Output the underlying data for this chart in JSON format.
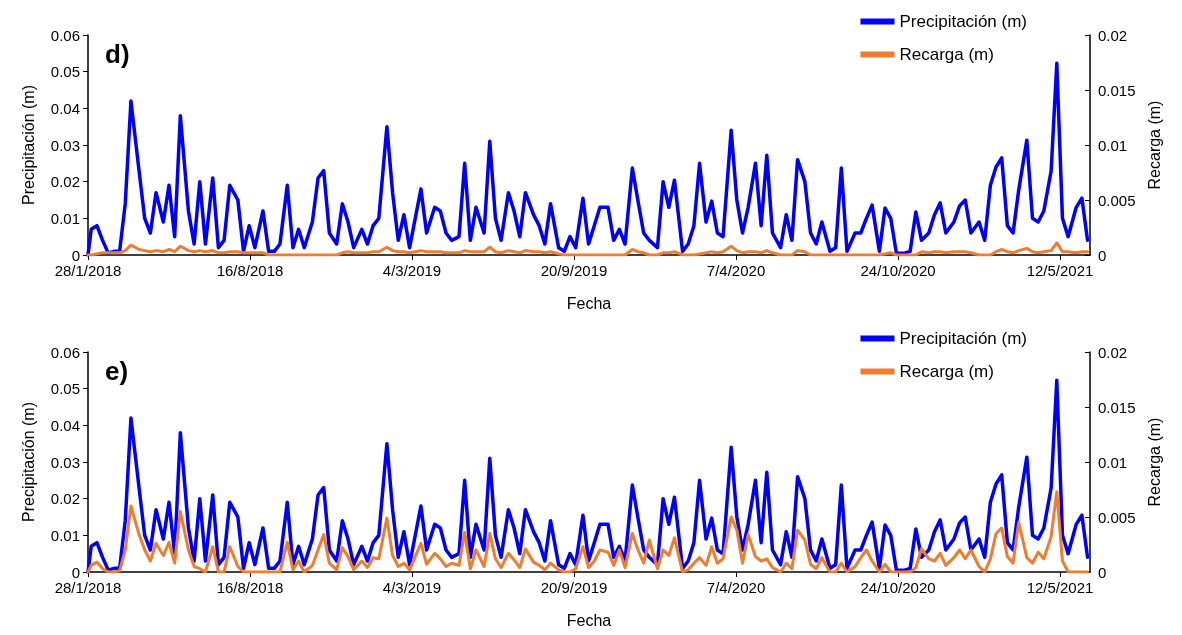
{
  "chart_data": [
    {
      "type": "line",
      "title": "d)",
      "xlabel": "Fecha",
      "ylabel": "Precipitación (m)",
      "y2label": "Recarga (m)",
      "legend": "top right",
      "grid": false,
      "marker": "none",
      "line_style": "solid",
      "xlim": [
        "2018-01-28",
        "2021-06-18"
      ],
      "xticks": [
        {
          "value": "2018-01-28",
          "label": "28/1/2018"
        },
        {
          "value": "2018-08-16",
          "label": "16/8/2018"
        },
        {
          "value": "2019-03-04",
          "label": "4/3/2019"
        },
        {
          "value": "2019-09-20",
          "label": "20/9/2019"
        },
        {
          "value": "2020-04-07",
          "label": "7/4/2020"
        },
        {
          "value": "2020-10-24",
          "label": "24/10/2020"
        },
        {
          "value": "2021-05-12",
          "label": "12/5/2021"
        }
      ],
      "ylim": [
        0,
        0.06
      ],
      "yticks": [
        0,
        0.01,
        0.02,
        0.03,
        0.04,
        0.05,
        0.06
      ],
      "y2lim": [
        0,
        0.02
      ],
      "y2ticks": [
        0,
        0.005,
        0.01,
        0.015,
        0.02
      ],
      "x": [
        "2018-01-28",
        "2018-02-01",
        "2018-02-08",
        "2018-02-15",
        "2018-02-22",
        "2018-03-01",
        "2018-03-08",
        "2018-03-15",
        "2018-03-22",
        "2018-04-01",
        "2018-04-08",
        "2018-04-15",
        "2018-04-22",
        "2018-05-01",
        "2018-05-08",
        "2018-05-15",
        "2018-05-22",
        "2018-06-01",
        "2018-06-08",
        "2018-06-15",
        "2018-06-22",
        "2018-07-01",
        "2018-07-08",
        "2018-07-15",
        "2018-07-22",
        "2018-08-01",
        "2018-08-08",
        "2018-08-15",
        "2018-08-22",
        "2018-09-01",
        "2018-09-08",
        "2018-09-15",
        "2018-09-22",
        "2018-10-01",
        "2018-10-08",
        "2018-10-15",
        "2018-10-22",
        "2018-11-01",
        "2018-11-08",
        "2018-11-15",
        "2018-11-22",
        "2018-12-01",
        "2018-12-08",
        "2018-12-15",
        "2018-12-22",
        "2019-01-01",
        "2019-01-08",
        "2019-01-15",
        "2019-01-22",
        "2019-02-01",
        "2019-02-08",
        "2019-02-15",
        "2019-02-22",
        "2019-03-01",
        "2019-03-08",
        "2019-03-15",
        "2019-03-22",
        "2019-04-01",
        "2019-04-08",
        "2019-04-15",
        "2019-04-22",
        "2019-05-01",
        "2019-05-08",
        "2019-05-15",
        "2019-05-22",
        "2019-06-01",
        "2019-06-08",
        "2019-06-15",
        "2019-06-22",
        "2019-07-01",
        "2019-07-08",
        "2019-07-15",
        "2019-07-22",
        "2019-08-01",
        "2019-08-08",
        "2019-08-15",
        "2019-08-22",
        "2019-09-01",
        "2019-09-08",
        "2019-09-15",
        "2019-09-22",
        "2019-10-01",
        "2019-10-08",
        "2019-10-15",
        "2019-10-22",
        "2019-11-01",
        "2019-11-08",
        "2019-11-15",
        "2019-11-22",
        "2019-12-01",
        "2019-12-08",
        "2019-12-15",
        "2019-12-22",
        "2020-01-01",
        "2020-01-08",
        "2020-01-15",
        "2020-01-22",
        "2020-02-01",
        "2020-02-08",
        "2020-02-15",
        "2020-02-22",
        "2020-03-01",
        "2020-03-08",
        "2020-03-15",
        "2020-03-22",
        "2020-04-01",
        "2020-04-08",
        "2020-04-15",
        "2020-04-22",
        "2020-05-01",
        "2020-05-08",
        "2020-05-15",
        "2020-05-22",
        "2020-06-01",
        "2020-06-08",
        "2020-06-15",
        "2020-06-22",
        "2020-07-01",
        "2020-07-08",
        "2020-07-15",
        "2020-07-22",
        "2020-08-01",
        "2020-08-08",
        "2020-08-15",
        "2020-08-22",
        "2020-09-01",
        "2020-09-08",
        "2020-09-15",
        "2020-09-22",
        "2020-10-01",
        "2020-10-08",
        "2020-10-15",
        "2020-10-22",
        "2020-11-01",
        "2020-11-08",
        "2020-11-15",
        "2020-11-22",
        "2020-12-01",
        "2020-12-08",
        "2020-12-15",
        "2020-12-22",
        "2021-01-01",
        "2021-01-08",
        "2021-01-15",
        "2021-01-22",
        "2021-02-01",
        "2021-02-08",
        "2021-02-15",
        "2021-02-22",
        "2021-03-01",
        "2021-03-08",
        "2021-03-15",
        "2021-03-22",
        "2021-04-01",
        "2021-04-08",
        "2021-04-15",
        "2021-04-22",
        "2021-05-01",
        "2021-05-08",
        "2021-05-15",
        "2021-05-22",
        "2021-06-01",
        "2021-06-08",
        "2021-06-15"
      ],
      "series": [
        {
          "name": "Precipitación (m)",
          "color": "#0000ff",
          "values": [
            0,
            0.007,
            0.008,
            0.004,
            0.0005,
            0.001,
            0.001,
            0.014,
            0.042,
            0.023,
            0.01,
            0.006,
            0.017,
            0.009,
            0.019,
            0.005,
            0.038,
            0.012,
            0.003,
            0.02,
            0.003,
            0.021,
            0.002,
            0.004,
            0.019,
            0.015,
            0.001,
            0.008,
            0.002,
            0.012,
            0.001,
            0.001,
            0.003,
            0.019,
            0.002,
            0.007,
            0.002,
            0.009,
            0.021,
            0.023,
            0.006,
            0.003,
            0.014,
            0.009,
            0.002,
            0.007,
            0.003,
            0.008,
            0.01,
            0.035,
            0.017,
            0.004,
            0.011,
            0.002,
            0.01,
            0.018,
            0.006,
            0.013,
            0.012,
            0.006,
            0.004,
            0.005,
            0.025,
            0.004,
            0.013,
            0.006,
            0.031,
            0.01,
            0.004,
            0.017,
            0.012,
            0.005,
            0.017,
            0.011,
            0.008,
            0.003,
            0.014,
            0.002,
            0.001,
            0.005,
            0.002,
            0.0155,
            0.003,
            0.008,
            0.013,
            0.013,
            0.004,
            0.007,
            0.003,
            0.0237,
            0.0147,
            0.006,
            0.004,
            0.002,
            0.02,
            0.013,
            0.0204,
            0.001,
            0.003,
            0.008,
            0.025,
            0.009,
            0.0147,
            0.006,
            0.005,
            0.034,
            0.015,
            0.006,
            0.013,
            0.025,
            0.008,
            0.0272,
            0.006,
            0.002,
            0.011,
            0.004,
            0.026,
            0.02,
            0.006,
            0.003,
            0.009,
            0.001,
            0.002,
            0.0237,
            0.001,
            0.006,
            0.006,
            0.01,
            0.0136,
            0.001,
            0.0128,
            0.01,
            0.0005,
            0.0005,
            0.001,
            0.0117,
            0.004,
            0.006,
            0.011,
            0.0142,
            0.006,
            0.009,
            0.0134,
            0.015,
            0.006,
            0.009,
            0.004,
            0.019,
            0.024,
            0.0265,
            0.008,
            0.006,
            0.0177,
            0.0313,
            0.01,
            0.009,
            0.012,
            0.0229,
            0.0523,
            0.01,
            0.005,
            0.013,
            0.0155,
            0.004
          ]
        },
        {
          "name": "Recarga (m)",
          "color": "#ed7d31",
          "axis": "y2",
          "values": [
            0,
            0,
            0.0001,
            0.0002,
            0.0002,
            0.0002,
            0.0002,
            0.0004,
            0.0009,
            0.0005,
            0.0004,
            0.0003,
            0.0004,
            0.0003,
            0.0005,
            0.0003,
            0.0008,
            0.0004,
            0.0003,
            0.0004,
            0.0003,
            0.0004,
            0.0002,
            0.0002,
            0.0003,
            0.0003,
            0.0002,
            0.0002,
            0.0002,
            0.0002,
            0,
            0,
            0,
            0,
            0,
            0,
            0,
            0,
            0,
            0,
            0,
            0,
            0.0002,
            0.0003,
            0.0002,
            0.0002,
            0.0002,
            0.0003,
            0.0003,
            0.0007,
            0.0004,
            0.0003,
            0.0003,
            0.0002,
            0.0003,
            0.0004,
            0.0003,
            0.0003,
            0.0003,
            0.0002,
            0.0002,
            0.0002,
            0.0004,
            0.0003,
            0.0003,
            0.0003,
            0.0007,
            0.0003,
            0.0002,
            0.0004,
            0.0003,
            0.0002,
            0.0004,
            0.0003,
            0.0003,
            0.0002,
            0.0003,
            0.0001,
            0,
            0,
            0,
            0,
            0,
            0,
            0,
            0,
            0,
            0,
            0,
            0.0005,
            0.0003,
            0.0002,
            0,
            0,
            0.0002,
            0.0002,
            0.0003,
            0,
            0,
            0,
            0.0001,
            0.0002,
            0.0003,
            0.0002,
            0.0003,
            0.0008,
            0.0004,
            0.0002,
            0.0003,
            0.0003,
            0.0002,
            0.0004,
            0.0002,
            0,
            0,
            0,
            0.0004,
            0.0003,
            0,
            0,
            0,
            0,
            0,
            0,
            0,
            0,
            0,
            0,
            0,
            0,
            0.0001,
            0.0002,
            0,
            0,
            0,
            0,
            0.0003,
            0.0002,
            0.0003,
            0.0003,
            0.0002,
            0.0003,
            0.0003,
            0.0003,
            0.0002,
            0,
            0,
            0,
            0.0003,
            0.0005,
            0.0003,
            0.0002,
            0.0004,
            0.0006,
            0.0003,
            0.0002,
            0.0003,
            0.0004,
            0.0011,
            0.0003,
            0.0003,
            0.0002,
            0.0003,
            0.0003
          ]
        }
      ]
    },
    {
      "type": "line",
      "title": "e)",
      "xlabel": "Fecha",
      "ylabel": "Precipitación (m)",
      "y2label": "Recarga (m)",
      "legend": "top right",
      "grid": false,
      "marker": "none",
      "line_style": "solid",
      "xlim": [
        "2018-01-28",
        "2021-06-18"
      ],
      "xticks": [
        {
          "value": "2018-01-28",
          "label": "28/1/2018"
        },
        {
          "value": "2018-08-16",
          "label": "16/8/2018"
        },
        {
          "value": "2019-03-04",
          "label": "4/3/2019"
        },
        {
          "value": "2019-09-20",
          "label": "20/9/2019"
        },
        {
          "value": "2020-04-07",
          "label": "7/4/2020"
        },
        {
          "value": "2020-10-24",
          "label": "24/10/2020"
        },
        {
          "value": "2021-05-12",
          "label": "12/5/2021"
        }
      ],
      "ylim": [
        0,
        0.06
      ],
      "yticks": [
        0,
        0.01,
        0.02,
        0.03,
        0.04,
        0.05,
        0.06
      ],
      "y2lim": [
        0,
        0.02
      ],
      "y2ticks": [
        0,
        0.005,
        0.01,
        0.015,
        0.02
      ],
      "x": [
        "2018-01-28",
        "2018-02-01",
        "2018-02-08",
        "2018-02-15",
        "2018-02-22",
        "2018-03-01",
        "2018-03-08",
        "2018-03-15",
        "2018-03-22",
        "2018-04-01",
        "2018-04-08",
        "2018-04-15",
        "2018-04-22",
        "2018-05-01",
        "2018-05-08",
        "2018-05-15",
        "2018-05-22",
        "2018-06-01",
        "2018-06-08",
        "2018-06-15",
        "2018-06-22",
        "2018-07-01",
        "2018-07-08",
        "2018-07-15",
        "2018-07-22",
        "2018-08-01",
        "2018-08-08",
        "2018-08-15",
        "2018-08-22",
        "2018-09-01",
        "2018-09-08",
        "2018-09-15",
        "2018-09-22",
        "2018-10-01",
        "2018-10-08",
        "2018-10-15",
        "2018-10-22",
        "2018-11-01",
        "2018-11-08",
        "2018-11-15",
        "2018-11-22",
        "2018-12-01",
        "2018-12-08",
        "2018-12-15",
        "2018-12-22",
        "2019-01-01",
        "2019-01-08",
        "2019-01-15",
        "2019-01-22",
        "2019-02-01",
        "2019-02-08",
        "2019-02-15",
        "2019-02-22",
        "2019-03-01",
        "2019-03-08",
        "2019-03-15",
        "2019-03-22",
        "2019-04-01",
        "2019-04-08",
        "2019-04-15",
        "2019-04-22",
        "2019-05-01",
        "2019-05-08",
        "2019-05-15",
        "2019-05-22",
        "2019-06-01",
        "2019-06-08",
        "2019-06-15",
        "2019-06-22",
        "2019-07-01",
        "2019-07-08",
        "2019-07-15",
        "2019-07-22",
        "2019-08-01",
        "2019-08-08",
        "2019-08-15",
        "2019-08-22",
        "2019-09-01",
        "2019-09-08",
        "2019-09-15",
        "2019-09-22",
        "2019-10-01",
        "2019-10-08",
        "2019-10-15",
        "2019-10-22",
        "2019-11-01",
        "2019-11-08",
        "2019-11-15",
        "2019-11-22",
        "2019-12-01",
        "2019-12-08",
        "2019-12-15",
        "2019-12-22",
        "2020-01-01",
        "2020-01-08",
        "2020-01-15",
        "2020-01-22",
        "2020-02-01",
        "2020-02-08",
        "2020-02-15",
        "2020-02-22",
        "2020-03-01",
        "2020-03-08",
        "2020-03-15",
        "2020-03-22",
        "2020-04-01",
        "2020-04-08",
        "2020-04-15",
        "2020-04-22",
        "2020-05-01",
        "2020-05-08",
        "2020-05-15",
        "2020-05-22",
        "2020-06-01",
        "2020-06-08",
        "2020-06-15",
        "2020-06-22",
        "2020-07-01",
        "2020-07-08",
        "2020-07-15",
        "2020-07-22",
        "2020-08-01",
        "2020-08-08",
        "2020-08-15",
        "2020-08-22",
        "2020-09-01",
        "2020-09-08",
        "2020-09-15",
        "2020-09-22",
        "2020-10-01",
        "2020-10-08",
        "2020-10-15",
        "2020-10-22",
        "2020-11-01",
        "2020-11-08",
        "2020-11-15",
        "2020-11-22",
        "2020-12-01",
        "2020-12-08",
        "2020-12-15",
        "2020-12-22",
        "2021-01-01",
        "2021-01-08",
        "2021-01-15",
        "2021-01-22",
        "2021-02-01",
        "2021-02-08",
        "2021-02-15",
        "2021-02-22",
        "2021-03-01",
        "2021-03-08",
        "2021-03-15",
        "2021-03-22",
        "2021-04-01",
        "2021-04-08",
        "2021-04-15",
        "2021-04-22",
        "2021-05-01",
        "2021-05-08",
        "2021-05-15",
        "2021-05-22",
        "2021-06-01",
        "2021-06-08",
        "2021-06-15"
      ],
      "series": [
        {
          "name": "Precipitación (m)",
          "color": "#0000ff",
          "values": [
            0,
            0.007,
            0.008,
            0.004,
            0.0005,
            0.001,
            0.001,
            0.014,
            0.042,
            0.023,
            0.01,
            0.006,
            0.017,
            0.009,
            0.019,
            0.005,
            0.038,
            0.012,
            0.003,
            0.02,
            0.003,
            0.021,
            0.002,
            0.004,
            0.019,
            0.015,
            0.001,
            0.008,
            0.002,
            0.012,
            0.001,
            0.001,
            0.003,
            0.019,
            0.002,
            0.007,
            0.002,
            0.009,
            0.021,
            0.023,
            0.006,
            0.003,
            0.014,
            0.009,
            0.002,
            0.007,
            0.003,
            0.008,
            0.01,
            0.035,
            0.017,
            0.004,
            0.011,
            0.002,
            0.01,
            0.018,
            0.006,
            0.013,
            0.012,
            0.006,
            0.004,
            0.005,
            0.025,
            0.004,
            0.013,
            0.006,
            0.031,
            0.01,
            0.004,
            0.017,
            0.012,
            0.005,
            0.017,
            0.011,
            0.008,
            0.003,
            0.014,
            0.002,
            0.001,
            0.005,
            0.002,
            0.0155,
            0.003,
            0.008,
            0.013,
            0.013,
            0.004,
            0.007,
            0.003,
            0.0237,
            0.0147,
            0.006,
            0.004,
            0.002,
            0.02,
            0.013,
            0.0204,
            0.001,
            0.003,
            0.008,
            0.025,
            0.009,
            0.0147,
            0.006,
            0.005,
            0.034,
            0.015,
            0.006,
            0.013,
            0.025,
            0.008,
            0.0272,
            0.006,
            0.002,
            0.011,
            0.004,
            0.026,
            0.02,
            0.006,
            0.003,
            0.009,
            0.001,
            0.002,
            0.0237,
            0.001,
            0.006,
            0.006,
            0.01,
            0.0136,
            0.001,
            0.0128,
            0.01,
            0.0005,
            0.0005,
            0.001,
            0.0117,
            0.004,
            0.006,
            0.011,
            0.0142,
            0.006,
            0.009,
            0.0134,
            0.015,
            0.006,
            0.009,
            0.004,
            0.019,
            0.024,
            0.0265,
            0.008,
            0.006,
            0.0177,
            0.0313,
            0.01,
            0.009,
            0.012,
            0.0229,
            0.0523,
            0.01,
            0.005,
            0.013,
            0.0155,
            0.004
          ]
        },
        {
          "name": "Recarga (m)",
          "color": "#ed7d31",
          "axis": "y2",
          "values": [
            0,
            0.0006,
            0.0009,
            0.0003,
            0,
            0,
            0.0001,
            0.002,
            0.006,
            0.0034,
            0.002,
            0.001,
            0.0026,
            0.0015,
            0.0027,
            0.0008,
            0.0055,
            0.002,
            0.0005,
            0.0003,
            0,
            0.0023,
            0,
            0,
            0.0023,
            0.0005,
            0,
            0,
            0,
            0,
            0,
            0,
            0,
            0.0027,
            0.0002,
            0.001,
            0,
            0.0006,
            0.002,
            0.0034,
            0.0008,
            0.0002,
            0.0022,
            0.0014,
            0.0002,
            0.001,
            0.0004,
            0.0013,
            0.0012,
            0.0049,
            0.0015,
            0.0005,
            0.0008,
            0.0002,
            0.0014,
            0.0026,
            0.0007,
            0.0017,
            0.0012,
            0.0005,
            0.0008,
            0.0006,
            0.0036,
            0.0003,
            0.002,
            0.0005,
            0.0035,
            0.0012,
            0.0004,
            0.0017,
            0.0011,
            0.0004,
            0.0021,
            0.0009,
            0.0006,
            0.0002,
            0.0008,
            0.0002,
            0,
            0,
            0.0003,
            0.0023,
            0.0004,
            0.001,
            0.002,
            0.0018,
            0.0006,
            0.002,
            0.0004,
            0.0035,
            0.002,
            0.0008,
            0.0029,
            0.0003,
            0.002,
            0.0015,
            0.0031,
            0,
            0.0002,
            0.0008,
            0.0013,
            0.0006,
            0.0023,
            0.0008,
            0.0012,
            0.005,
            0.0038,
            0.0008,
            0.0034,
            0.0014,
            0.001,
            0.0012,
            0.0004,
            0,
            0.0008,
            0.0003,
            0.0038,
            0.0029,
            0.0007,
            0.0003,
            0.0013,
            0,
            0,
            0.0008,
            0,
            0.0005,
            0.0013,
            0.002,
            0.001,
            0,
            0.0007,
            0,
            0,
            0,
            0,
            0.0004,
            0.0021,
            0.0012,
            0.001,
            0.0017,
            0.0006,
            0.0013,
            0.002,
            0.0012,
            0.002,
            0.0005,
            0,
            0.0012,
            0.0035,
            0.004,
            0.0014,
            0.0008,
            0.0045,
            0.0013,
            0.0008,
            0.0018,
            0.0012,
            0.0032,
            0.0073,
            0.001,
            0,
            0,
            0,
            0
          ]
        }
      ]
    }
  ]
}
